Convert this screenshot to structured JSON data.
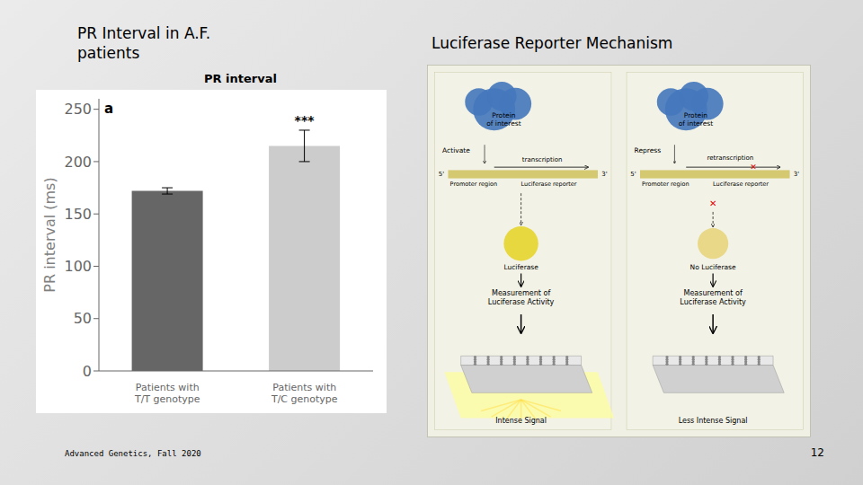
{
  "chart_data": {
    "type": "bar",
    "title": "PR interval",
    "categories": [
      "Patients with\nT/T genotype",
      "Patients with\nT/C genotype"
    ],
    "values": [
      172,
      215
    ],
    "errors": [
      3,
      15
    ],
    "colors": [
      "#666666",
      "#cccccc"
    ],
    "ylabel": "PR interval (ms)",
    "ylim": [
      0,
      260
    ],
    "yticks": [
      0,
      50,
      100,
      150,
      200,
      250
    ],
    "annotations": [
      "PR Interval in A.F.\npatients",
      "Luciferase Reporter Mechanism",
      "Advanced Genetics, Fall 2020",
      "12",
      "a",
      "***",
      "Protein\nof interest",
      "Protein\nof interest",
      "Activate",
      "Repress",
      "transcription",
      "5'",
      "3'",
      "Promoter region",
      "Luciferase reporter",
      "retranscription",
      "✕",
      "5'",
      "3'",
      "Promoter region",
      "Luciferase reporter",
      "✕",
      "Luciferase",
      "No Luciferase",
      "Measurement of\nLuciferase Activity",
      "Measurement of\nLuciferase Activity",
      "Intense Signal",
      "Less Intense Signal"
    ]
  }
}
